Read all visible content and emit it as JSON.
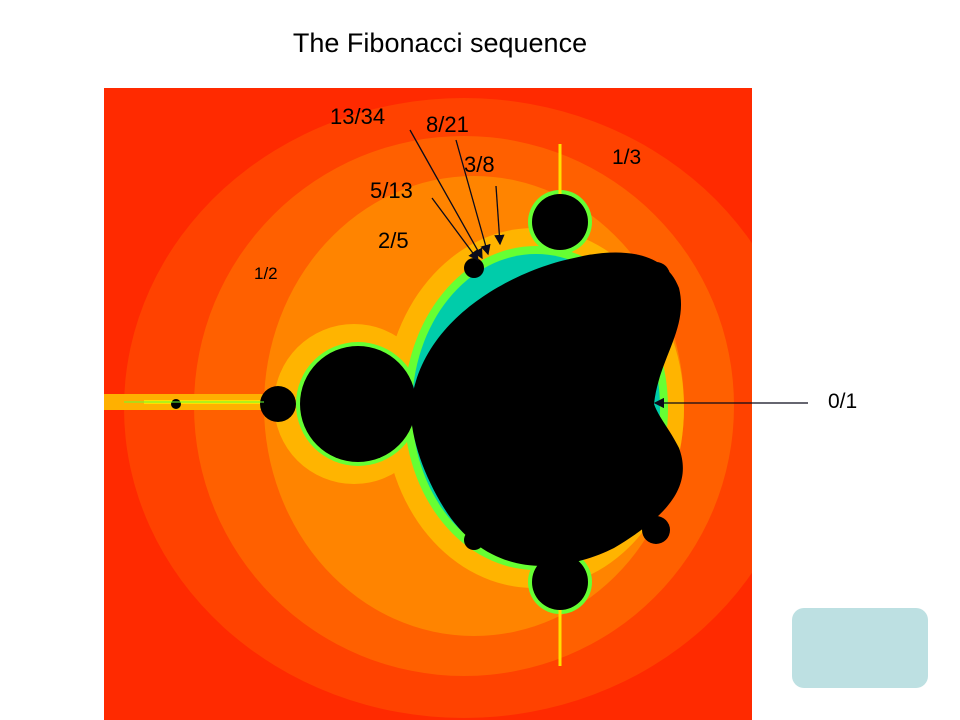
{
  "title": "The Fibonacci sequence",
  "labels": {
    "l_13_34": "13/34",
    "l_8_21": "8/21",
    "l_3_8": "3/8",
    "l_5_13": "5/13",
    "l_2_5": "2/5",
    "l_1_2": "1/2",
    "l_1_3": "1/3",
    "l_0_1": "0/1"
  },
  "colors": {
    "background_outer": "#ff2a00",
    "band_orange": "#ff5a00",
    "band_light": "#ff8c00",
    "band_yellow": "#ffc800",
    "edge_green": "#66ff33",
    "edge_cyan": "#00ccaa",
    "set_black": "#000000",
    "arrow": "#0a0a1a",
    "button": "#bde0e2"
  }
}
